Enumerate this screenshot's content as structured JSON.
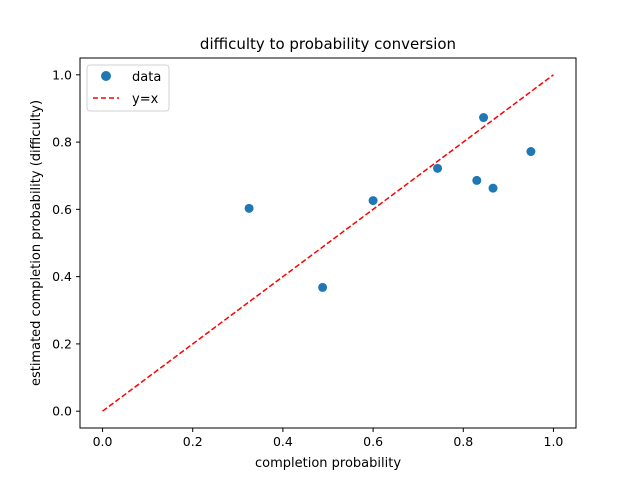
{
  "chart_data": {
    "type": "scatter",
    "title": "difficulty to probability conversion",
    "xlabel": "completion probability",
    "ylabel": "estimated completion probability (difficulty)",
    "xlim": [
      -0.05,
      1.05
    ],
    "ylim": [
      -0.05,
      1.05
    ],
    "xticks": [
      0.0,
      0.2,
      0.4,
      0.6,
      0.8,
      1.0
    ],
    "yticks": [
      0.0,
      0.2,
      0.4,
      0.6,
      0.8,
      1.0
    ],
    "xtick_labels": [
      "0.0",
      "0.2",
      "0.4",
      "0.6",
      "0.8",
      "1.0"
    ],
    "ytick_labels": [
      "0.0",
      "0.2",
      "0.4",
      "0.6",
      "0.8",
      "1.0"
    ],
    "grid": false,
    "legend_position": "top-left",
    "series": [
      {
        "name": "data",
        "kind": "scatter",
        "color": "#1f77b4",
        "points": [
          {
            "x": 0.325,
            "y": 0.603
          },
          {
            "x": 0.488,
            "y": 0.368
          },
          {
            "x": 0.6,
            "y": 0.626
          },
          {
            "x": 0.743,
            "y": 0.722
          },
          {
            "x": 0.83,
            "y": 0.686
          },
          {
            "x": 0.845,
            "y": 0.873
          },
          {
            "x": 0.866,
            "y": 0.663
          },
          {
            "x": 0.95,
            "y": 0.772
          }
        ]
      },
      {
        "name": "y=x",
        "kind": "line",
        "style": "dashed",
        "color": "#ff0000",
        "points": [
          {
            "x": 0.0,
            "y": 0.0
          },
          {
            "x": 1.0,
            "y": 1.0
          }
        ]
      }
    ]
  }
}
